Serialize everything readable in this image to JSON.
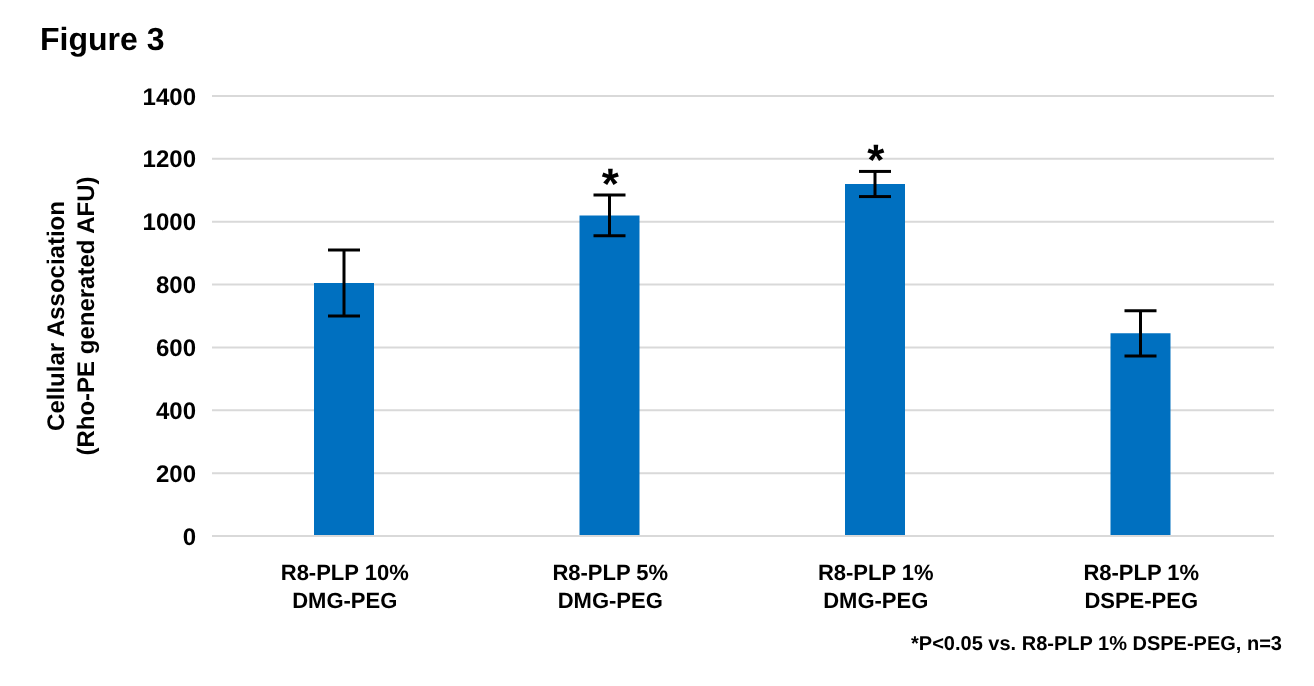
{
  "chart_data": {
    "type": "bar",
    "title": "Figure 3",
    "ylabel": "Cellular Association\n(Rho-PE generated AFU)",
    "categories": [
      "R8-PLP 10%\nDMG-PEG",
      "R8-PLP 5%\nDMG-PEG",
      "R8-PLP 1%\nDMG-PEG",
      "R8-PLP 1%\nDSPE-PEG"
    ],
    "values": [
      805,
      1020,
      1120,
      645
    ],
    "errors": [
      105,
      65,
      40,
      72
    ],
    "color": "#0070c0",
    "ylim": [
      0,
      1400
    ],
    "yticks": [
      0,
      200,
      400,
      600,
      800,
      1000,
      1200,
      1400
    ],
    "grid": "y",
    "annotations": [
      {
        "text": "*",
        "x": "R8-PLP 5%\nDMG-PEG",
        "y": 1085
      },
      {
        "text": "*",
        "x": "R8-PLP 1%\nDMG-PEG",
        "y": 1160
      },
      "*P<0.05 vs. R8-PLP 1% DSPE-PEG, n=3"
    ]
  }
}
